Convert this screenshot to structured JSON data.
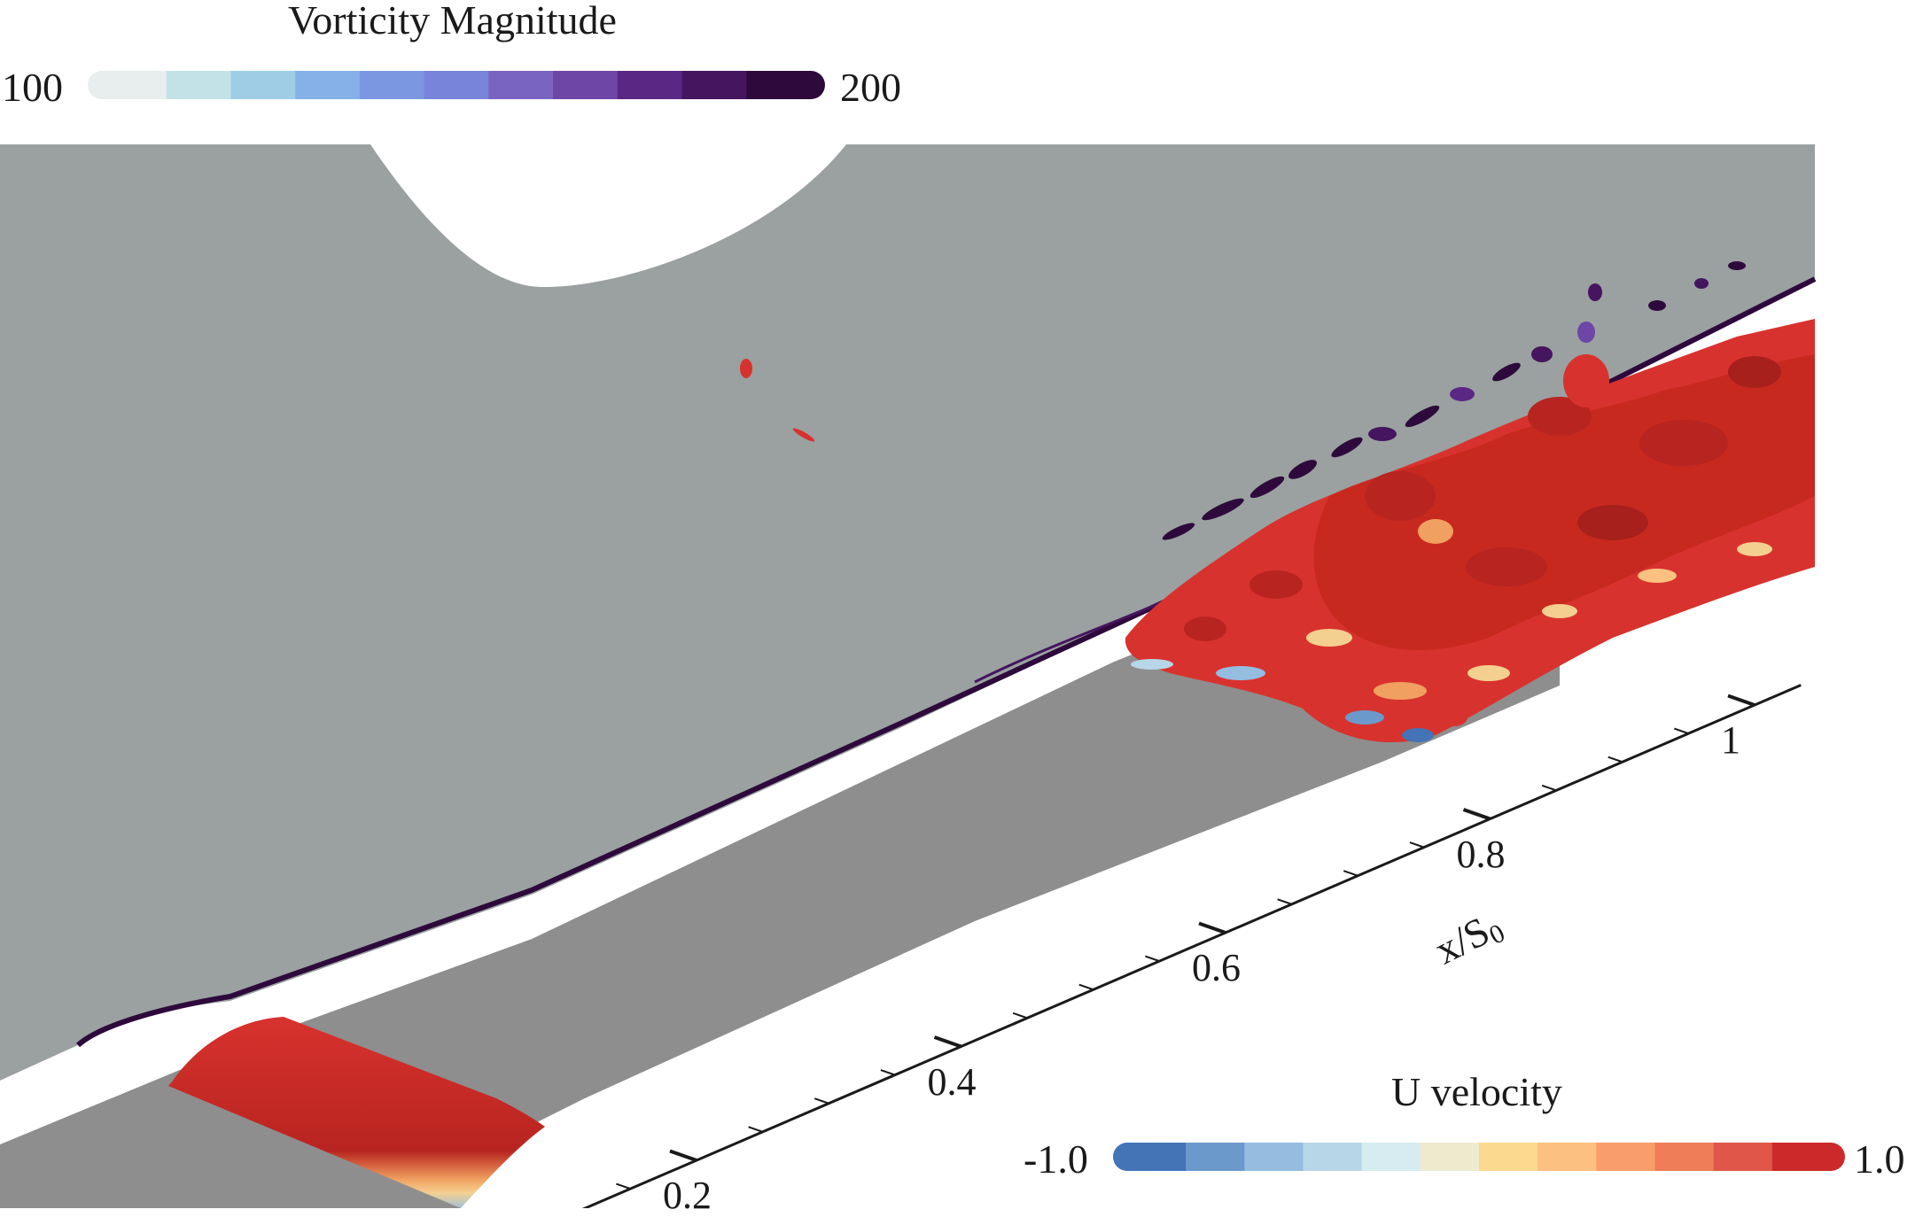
{
  "vorticity_colorbar": {
    "title": "Vorticity  Magnitude",
    "min_label": "100",
    "max_label": "200",
    "range": [
      100,
      200
    ],
    "colors": [
      "#e8eeee",
      "#c3e2e8",
      "#9fcde6",
      "#86b0e8",
      "#7b97e1",
      "#7784da",
      "#7a64c2",
      "#6e46a5",
      "#5b2785",
      "#45155f",
      "#2e0a3c"
    ]
  },
  "u_colorbar": {
    "title": "U velocity",
    "min_label": "-1.0",
    "max_label": "1.0",
    "range": [
      -1.0,
      1.0
    ],
    "colors": [
      "#4474b6",
      "#6c99cb",
      "#94bde0",
      "#b7d7e8",
      "#d6ecf0",
      "#eeeacd",
      "#fbd98e",
      "#fcc080",
      "#f89e6a",
      "#ee7d58",
      "#e0574a",
      "#cc2a2a"
    ]
  },
  "axis": {
    "title_main": "x/S",
    "title_sub": "0",
    "ticks": [
      {
        "value": 0.2,
        "label": "0.2"
      },
      {
        "value": 0.4,
        "label": "0.4"
      },
      {
        "value": 0.6,
        "label": "0.6"
      },
      {
        "value": 0.8,
        "label": "0.8"
      },
      {
        "value": 1.0,
        "label": "1"
      }
    ]
  },
  "colors": {
    "wall_plane": "#9aa1a0",
    "floor_plane": "#8e8e8e",
    "vortex_red": "#d8322e",
    "vorticity_dark": "#2e0a3c"
  }
}
